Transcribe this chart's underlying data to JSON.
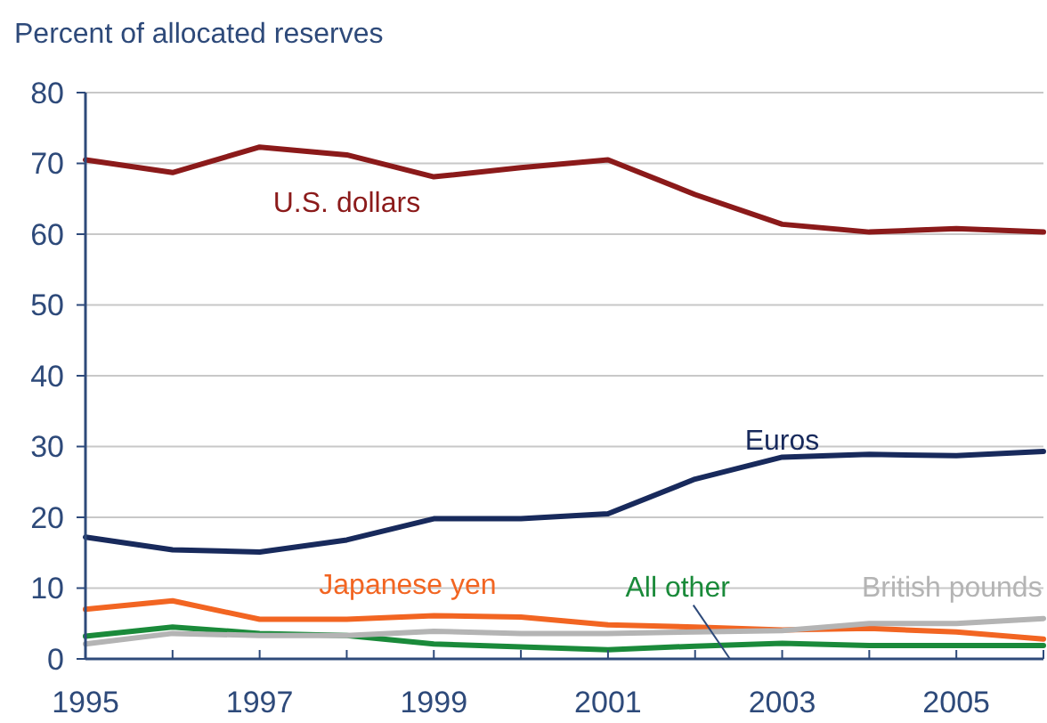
{
  "chart_data": {
    "type": "line",
    "ylabel": "Percent of allocated reserves",
    "x": [
      1995,
      1996,
      1997,
      1998,
      1999,
      2000,
      2001,
      2002,
      2003,
      2004,
      2005,
      2006
    ],
    "xlim": [
      1995,
      2006
    ],
    "xticks": [
      1995,
      {
        "value": 1996,
        "label": null
      },
      1997,
      {
        "value": 1998,
        "label": null
      },
      1999,
      {
        "value": 2000,
        "label": null
      },
      2001,
      {
        "value": 2002,
        "label": null
      },
      2003,
      {
        "value": 2004,
        "label": null
      },
      2005,
      {
        "value": 2006,
        "label": null
      }
    ],
    "ylim": [
      0,
      80
    ],
    "yticks": [
      0,
      10,
      20,
      30,
      40,
      50,
      60,
      70,
      80
    ],
    "grid": "y",
    "marker": "none",
    "line_style": "solid",
    "series": [
      {
        "name": "U.S. dollars",
        "color": "#8b1a1a",
        "values": [
          70.5,
          68.7,
          72.3,
          71.2,
          68.1,
          69.4,
          70.5,
          65.6,
          61.4,
          60.3,
          60.8,
          60.3
        ]
      },
      {
        "name": "Euros",
        "color": "#182a5c",
        "values": [
          17.2,
          15.4,
          15.1,
          16.8,
          19.8,
          19.8,
          20.5,
          25.4,
          28.5,
          28.9,
          28.7,
          29.3
        ]
      },
      {
        "name": "Japanese yen",
        "color": "#f26522",
        "values": [
          7.0,
          8.2,
          5.6,
          5.6,
          6.1,
          5.9,
          4.8,
          4.5,
          4.1,
          4.3,
          3.8,
          2.8
        ]
      },
      {
        "name": "All other",
        "color": "#1a8a3a",
        "values": [
          3.2,
          4.5,
          3.6,
          3.3,
          2.1,
          1.7,
          1.3,
          1.8,
          2.2,
          1.9,
          1.9,
          1.9
        ]
      },
      {
        "name": "British pounds",
        "color": "#b4b4b4",
        "values": [
          2.1,
          3.6,
          3.3,
          3.3,
          3.9,
          3.6,
          3.6,
          3.8,
          4.0,
          5.0,
          5.0,
          5.7
        ]
      }
    ]
  }
}
